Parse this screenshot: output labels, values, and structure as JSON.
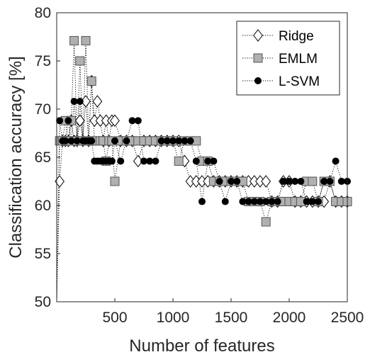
{
  "chart_data": {
    "type": "line",
    "title": "",
    "xlabel": "Number of features",
    "ylabel": "Classification accuracy [%]",
    "xlim": [
      0,
      2500
    ],
    "ylim": [
      50,
      80
    ],
    "xticks": [
      500,
      1000,
      1500,
      2000,
      2500
    ],
    "yticks": [
      50,
      55,
      60,
      65,
      70,
      75,
      80
    ],
    "grid": false,
    "legend_position": "top-right",
    "line_style": "dotted",
    "series": [
      {
        "name": "Ridge",
        "marker": "diamond",
        "marker_fill": "#ffffff",
        "marker_stroke": "#000000",
        "x": [
          25,
          50,
          75,
          100,
          125,
          150,
          175,
          200,
          225,
          250,
          275,
          300,
          325,
          350,
          375,
          400,
          425,
          450,
          475,
          500,
          550,
          600,
          650,
          700,
          750,
          800,
          850,
          900,
          950,
          1000,
          1050,
          1100,
          1150,
          1200,
          1250,
          1300,
          1350,
          1400,
          1450,
          1500,
          1550,
          1600,
          1650,
          1700,
          1750,
          1800,
          1850,
          1900,
          1950,
          2000,
          2050,
          2100,
          2150,
          2200,
          2250,
          2300,
          2350,
          2400,
          2450,
          2500
        ],
        "y": [
          62.5,
          66.7,
          66.7,
          66.7,
          68.8,
          66.7,
          66.7,
          68.8,
          66.7,
          70.8,
          66.7,
          72.9,
          68.8,
          70.8,
          68.8,
          66.7,
          68.8,
          66.7,
          68.8,
          68.8,
          66.7,
          66.7,
          66.7,
          64.6,
          66.7,
          66.7,
          66.7,
          66.7,
          66.7,
          66.7,
          66.7,
          64.6,
          62.5,
          62.5,
          62.5,
          62.5,
          62.5,
          62.5,
          62.5,
          62.5,
          62.5,
          62.5,
          62.5,
          62.5,
          62.5,
          62.5,
          60.4,
          60.4,
          62.5,
          62.5,
          60.4,
          60.4,
          60.4,
          60.4,
          60.4,
          60.4,
          62.5,
          60.4,
          60.4,
          60.4
        ]
      },
      {
        "name": "EMLM",
        "marker": "square",
        "marker_fill": "#b0b0b0",
        "marker_stroke": "#555555",
        "x": [
          25,
          50,
          75,
          100,
          125,
          150,
          175,
          200,
          225,
          250,
          275,
          300,
          325,
          350,
          375,
          400,
          425,
          450,
          475,
          500,
          550,
          600,
          650,
          700,
          750,
          800,
          850,
          900,
          950,
          1000,
          1050,
          1100,
          1150,
          1200,
          1250,
          1300,
          1350,
          1400,
          1450,
          1500,
          1550,
          1600,
          1650,
          1700,
          1750,
          1800,
          1850,
          1900,
          1950,
          2000,
          2050,
          2100,
          2150,
          2200,
          2250,
          2300,
          2350,
          2400,
          2450,
          2500
        ],
        "y": [
          66.7,
          66.7,
          68.8,
          66.7,
          68.8,
          77.1,
          66.7,
          75.0,
          66.7,
          77.1,
          66.7,
          72.9,
          66.7,
          66.7,
          66.7,
          66.7,
          64.6,
          66.7,
          66.7,
          62.5,
          66.7,
          66.7,
          66.7,
          66.7,
          66.7,
          66.7,
          66.7,
          66.7,
          66.7,
          66.7,
          64.6,
          66.7,
          66.7,
          66.7,
          64.6,
          64.6,
          62.5,
          62.5,
          62.5,
          62.5,
          62.5,
          62.5,
          60.4,
          60.4,
          60.4,
          58.3,
          60.4,
          60.4,
          60.4,
          60.4,
          60.4,
          60.4,
          62.5,
          62.5,
          60.4,
          62.5,
          62.5,
          60.4,
          60.4,
          60.4
        ]
      },
      {
        "name": "L-SVM",
        "marker": "circle",
        "marker_fill": "#000000",
        "marker_stroke": "#000000",
        "x": [
          25,
          50,
          75,
          100,
          125,
          150,
          175,
          200,
          225,
          250,
          275,
          300,
          325,
          350,
          375,
          400,
          425,
          450,
          475,
          500,
          550,
          600,
          650,
          700,
          750,
          800,
          850,
          900,
          950,
          1000,
          1050,
          1100,
          1150,
          1200,
          1250,
          1300,
          1350,
          1400,
          1450,
          1500,
          1550,
          1600,
          1650,
          1700,
          1750,
          1800,
          1850,
          1900,
          1950,
          2000,
          2050,
          2100,
          2150,
          2200,
          2250,
          2300,
          2350,
          2400,
          2450,
          2500
        ],
        "y": [
          68.8,
          66.7,
          66.7,
          68.8,
          66.7,
          70.8,
          66.7,
          70.8,
          66.7,
          66.7,
          66.7,
          66.7,
          64.6,
          64.6,
          64.6,
          64.6,
          64.6,
          64.6,
          64.6,
          66.7,
          64.6,
          66.7,
          68.8,
          68.8,
          64.6,
          64.6,
          64.6,
          66.7,
          66.7,
          66.7,
          66.7,
          66.7,
          66.7,
          64.6,
          60.4,
          64.6,
          64.6,
          62.5,
          60.4,
          62.5,
          62.5,
          60.4,
          60.4,
          60.4,
          60.4,
          60.4,
          60.4,
          60.4,
          62.5,
          62.5,
          62.5,
          62.5,
          60.4,
          60.4,
          60.4,
          62.5,
          62.5,
          64.6,
          62.5,
          62.5
        ]
      }
    ]
  }
}
